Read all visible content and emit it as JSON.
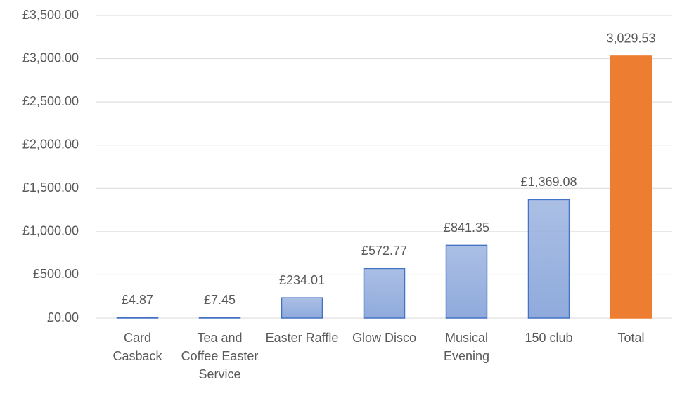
{
  "chart_data": {
    "type": "bar",
    "categories": [
      "Card Casback",
      "Tea and Coffee Easter Service",
      "Easter Raffle",
      "Glow Disco",
      "Musical Evening",
      "150 club",
      "Total"
    ],
    "values": [
      4.87,
      7.45,
      234.01,
      572.77,
      841.35,
      1369.08,
      3029.53
    ],
    "value_labels": [
      "£4.87",
      "£7.45",
      "£234.01",
      "£572.77",
      "£841.35",
      "£1,369.08",
      "3,029.53"
    ],
    "colors": [
      "#8faadc",
      "#8faadc",
      "#8faadc",
      "#8faadc",
      "#8faadc",
      "#8faadc",
      "#ed7d31"
    ],
    "edgecolors": [
      "#4472c4",
      "#4472c4",
      "#4472c4",
      "#4472c4",
      "#4472c4",
      "#4472c4",
      "#ed7d31"
    ],
    "ylim": [
      0,
      3500
    ],
    "yticks": [
      {
        "value": 0,
        "label": "£0.00"
      },
      {
        "value": 500,
        "label": "£500.00"
      },
      {
        "value": 1000,
        "label": "£1,000.00"
      },
      {
        "value": 1500,
        "label": "£1,500.00"
      },
      {
        "value": 2000,
        "label": "£2,000.00"
      },
      {
        "value": 2500,
        "label": "£2,500.00"
      },
      {
        "value": 3000,
        "label": "£3,000.00"
      },
      {
        "value": 3500,
        "label": "£3,500.00"
      }
    ],
    "grid": true
  }
}
